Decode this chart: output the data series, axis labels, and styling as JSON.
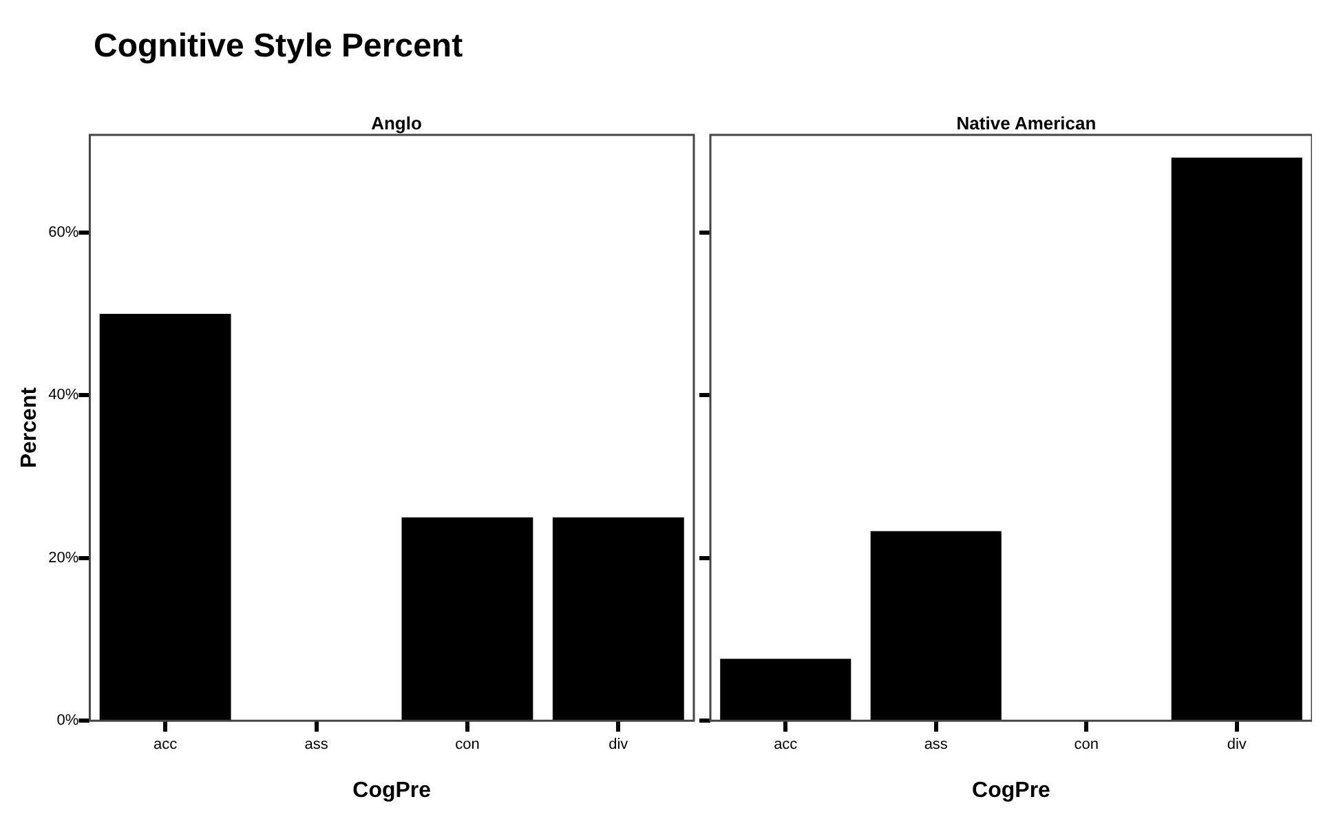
{
  "chart_data": [
    {
      "type": "bar",
      "title": "Cognitive Style Percent",
      "subtitle": "Anglo",
      "xlabel": "CogPre",
      "ylabel": "Percent",
      "categories": [
        "acc",
        "ass",
        "con",
        "div"
      ],
      "values": [
        50,
        0,
        25,
        25
      ],
      "color": "#000000",
      "ylim": [
        0,
        72
      ],
      "yticks": [
        {
          "value": 0,
          "label": "0%"
        },
        {
          "value": 20,
          "label": "20%"
        },
        {
          "value": 40,
          "label": "40%"
        },
        {
          "value": 60,
          "label": "60%"
        }
      ],
      "grid": false,
      "legend": false
    },
    {
      "type": "bar",
      "subtitle": "Native American",
      "xlabel": "CogPre",
      "categories": [
        "acc",
        "ass",
        "con",
        "div"
      ],
      "values": [
        7.6,
        23.3,
        0,
        69.2
      ],
      "color": "#000000",
      "ylim": [
        0,
        72
      ],
      "yticks": [
        {
          "value": 0,
          "label": null
        },
        {
          "value": 20,
          "label": null
        },
        {
          "value": 40,
          "label": null
        },
        {
          "value": 60,
          "label": null
        }
      ],
      "grid": false,
      "legend": false,
      "tick_labels": "x"
    }
  ]
}
